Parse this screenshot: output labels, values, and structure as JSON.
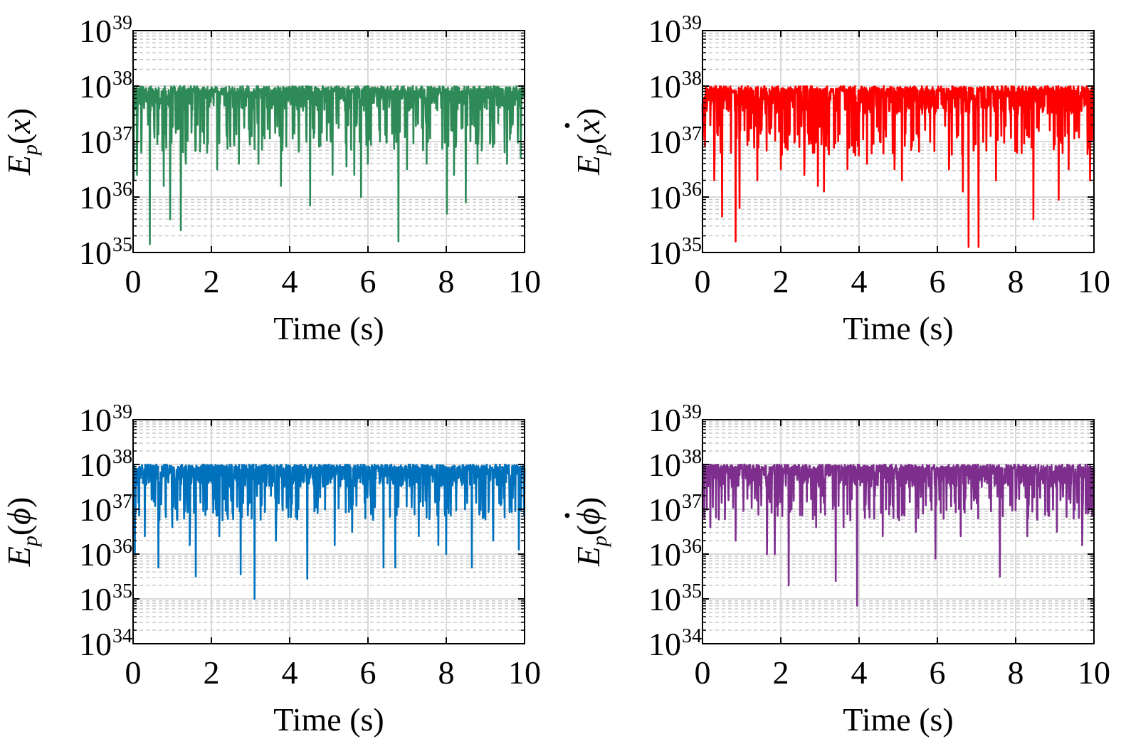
{
  "chart_data": [
    {
      "type": "line",
      "id": "ep-x",
      "ylabel": {
        "base": "E",
        "sub": "p",
        "open": "(",
        "var": "x",
        "dot": false,
        "close": ")"
      },
      "xlabel": "Time (s)",
      "xlim": [
        0,
        10
      ],
      "xticks": [
        0,
        2,
        4,
        6,
        8,
        10
      ],
      "xtick_labels": [
        "0",
        "2",
        "4",
        "6",
        "8",
        "10"
      ],
      "yscale": "log",
      "ylim": [
        1e+35,
        1e+39
      ],
      "ytick_exponents": [
        35,
        36,
        37,
        38,
        39
      ],
      "ytick_base": "10",
      "grid": true,
      "color": "#2e8b57",
      "series": [
        {
          "color": "#2e8b57",
          "upper_log10": 38.0,
          "baseline_log10": 37.65,
          "deep_dips": [
            [
              0.02,
              36.3
            ],
            [
              0.1,
              36.4
            ],
            [
              0.43,
              35.15
            ],
            [
              0.78,
              36.2
            ],
            [
              0.95,
              35.6
            ],
            [
              1.22,
              35.4
            ],
            [
              1.35,
              36.6
            ],
            [
              2.15,
              36.5
            ],
            [
              2.7,
              36.6
            ],
            [
              3.2,
              36.6
            ],
            [
              3.78,
              36.2
            ],
            [
              4.52,
              35.85
            ],
            [
              5.1,
              36.4
            ],
            [
              5.45,
              36.55
            ],
            [
              5.65,
              36.4
            ],
            [
              5.82,
              36.0
            ],
            [
              6.0,
              36.6
            ],
            [
              6.78,
              35.2
            ],
            [
              7.0,
              36.5
            ],
            [
              7.5,
              36.6
            ],
            [
              8.02,
              35.7
            ],
            [
              8.2,
              36.4
            ],
            [
              8.5,
              35.9
            ],
            [
              8.8,
              36.6
            ],
            [
              9.55,
              36.6
            ],
            [
              9.9,
              36.7
            ]
          ]
        }
      ]
    },
    {
      "type": "line",
      "id": "ep-xdot",
      "ylabel": {
        "base": "E",
        "sub": "p",
        "open": "(",
        "var": "x",
        "dot": true,
        "close": ")"
      },
      "xlabel": "Time (s)",
      "xlim": [
        0,
        10
      ],
      "xticks": [
        0,
        2,
        4,
        6,
        8,
        10
      ],
      "xtick_labels": [
        "0",
        "2",
        "4",
        "6",
        "8",
        "10"
      ],
      "yscale": "log",
      "ylim": [
        1e+35,
        1e+39
      ],
      "ytick_exponents": [
        35,
        36,
        37,
        38,
        39
      ],
      "ytick_base": "10",
      "grid": true,
      "color": "#ff0000",
      "series": [
        {
          "color": "#ff0000",
          "upper_log10": 38.0,
          "baseline_log10": 37.6,
          "deep_dips": [
            [
              0.3,
              36.3
            ],
            [
              0.5,
              35.65
            ],
            [
              0.85,
              35.2
            ],
            [
              0.95,
              35.8
            ],
            [
              1.4,
              36.3
            ],
            [
              2.0,
              36.5
            ],
            [
              2.6,
              36.4
            ],
            [
              2.95,
              36.2
            ],
            [
              3.1,
              36.1
            ],
            [
              3.7,
              36.5
            ],
            [
              4.2,
              36.6
            ],
            [
              4.9,
              36.5
            ],
            [
              5.1,
              36.3
            ],
            [
              6.3,
              36.5
            ],
            [
              6.65,
              36.1
            ],
            [
              6.8,
              35.1
            ],
            [
              7.05,
              35.1
            ],
            [
              7.5,
              36.3
            ],
            [
              8.45,
              35.6
            ],
            [
              9.1,
              35.95
            ],
            [
              9.35,
              36.5
            ],
            [
              9.9,
              36.3
            ]
          ]
        }
      ]
    },
    {
      "type": "line",
      "id": "ep-phi",
      "ylabel": {
        "base": "E",
        "sub": "p",
        "open": "(",
        "var": "ϕ",
        "dot": false,
        "close": ")"
      },
      "xlabel": "Time (s)",
      "xlim": [
        0,
        10
      ],
      "xticks": [
        0,
        2,
        4,
        6,
        8,
        10
      ],
      "xtick_labels": [
        "0",
        "2",
        "4",
        "6",
        "8",
        "10"
      ],
      "yscale": "log",
      "ylim": [
        1e+34,
        1e+39
      ],
      "ytick_exponents": [
        34,
        35,
        36,
        37,
        38,
        39
      ],
      "ytick_base": "10",
      "grid": true,
      "color": "#0072bd",
      "series": [
        {
          "color": "#0072bd",
          "upper_log10": 38.0,
          "baseline_log10": 37.6,
          "deep_dips": [
            [
              0.05,
              36.0
            ],
            [
              0.3,
              36.4
            ],
            [
              0.65,
              35.7
            ],
            [
              1.0,
              36.6
            ],
            [
              1.45,
              36.2
            ],
            [
              1.6,
              35.5
            ],
            [
              2.2,
              36.4
            ],
            [
              2.75,
              35.55
            ],
            [
              3.1,
              35.0
            ],
            [
              3.65,
              36.3
            ],
            [
              4.45,
              35.45
            ],
            [
              5.15,
              36.2
            ],
            [
              5.6,
              36.5
            ],
            [
              6.4,
              35.7
            ],
            [
              6.7,
              35.7
            ],
            [
              7.3,
              36.4
            ],
            [
              7.8,
              36.2
            ],
            [
              8.0,
              36.0
            ],
            [
              8.65,
              35.7
            ],
            [
              9.2,
              36.3
            ],
            [
              9.85,
              36.1
            ]
          ]
        }
      ]
    },
    {
      "type": "line",
      "id": "ep-phidot",
      "ylabel": {
        "base": "E",
        "sub": "p",
        "open": "(",
        "var": "ϕ",
        "dot": true,
        "close": ")"
      },
      "xlabel": "Time (s)",
      "xlim": [
        0,
        10
      ],
      "xticks": [
        0,
        2,
        4,
        6,
        8,
        10
      ],
      "xtick_labels": [
        "0",
        "2",
        "4",
        "6",
        "8",
        "10"
      ],
      "yscale": "log",
      "ylim": [
        1e+34,
        1e+39
      ],
      "ytick_exponents": [
        34,
        35,
        36,
        37,
        38,
        39
      ],
      "ytick_base": "10",
      "grid": true,
      "color": "#7e2f8e",
      "series": [
        {
          "color": "#7e2f8e",
          "upper_log10": 38.0,
          "baseline_log10": 37.6,
          "deep_dips": [
            [
              0.2,
              36.6
            ],
            [
              0.85,
              36.3
            ],
            [
              1.65,
              36.0
            ],
            [
              1.85,
              36.0
            ],
            [
              2.2,
              35.3
            ],
            [
              2.9,
              36.6
            ],
            [
              3.4,
              35.4
            ],
            [
              3.6,
              36.6
            ],
            [
              3.95,
              34.85
            ],
            [
              4.6,
              36.4
            ],
            [
              5.45,
              36.5
            ],
            [
              5.95,
              35.9
            ],
            [
              6.6,
              36.4
            ],
            [
              7.6,
              35.5
            ],
            [
              8.3,
              36.4
            ],
            [
              9.05,
              36.5
            ],
            [
              9.7,
              36.2
            ]
          ]
        }
      ]
    }
  ]
}
